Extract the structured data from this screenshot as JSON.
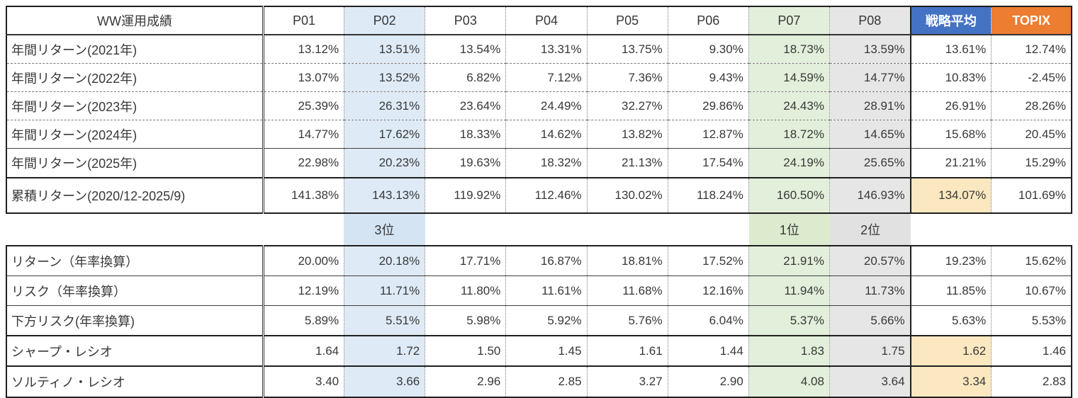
{
  "title": "WW運用成績",
  "columns": [
    "P01",
    "P02",
    "P03",
    "P04",
    "P05",
    "P06",
    "P07",
    "P08",
    "戦略平均",
    "TOPIX"
  ],
  "upper": [
    {
      "label": "年間リターン(2021年)",
      "values": [
        "13.12%",
        "13.51%",
        "13.54%",
        "13.31%",
        "13.75%",
        "9.30%",
        "18.73%",
        "13.59%",
        "13.61%",
        "12.74%"
      ]
    },
    {
      "label": "年間リターン(2022年)",
      "values": [
        "13.07%",
        "13.52%",
        "6.82%",
        "7.12%",
        "7.36%",
        "9.43%",
        "14.59%",
        "14.77%",
        "10.83%",
        "-2.45%"
      ]
    },
    {
      "label": "年間リターン(2023年)",
      "values": [
        "25.39%",
        "26.31%",
        "23.64%",
        "24.49%",
        "32.27%",
        "29.86%",
        "24.43%",
        "28.91%",
        "26.91%",
        "28.26%"
      ]
    },
    {
      "label": "年間リターン(2024年)",
      "values": [
        "14.77%",
        "17.62%",
        "18.33%",
        "14.62%",
        "13.82%",
        "12.87%",
        "18.72%",
        "14.65%",
        "15.68%",
        "20.45%"
      ]
    },
    {
      "label": "年間リターン(2025年)",
      "values": [
        "22.98%",
        "20.23%",
        "19.63%",
        "18.32%",
        "21.13%",
        "17.54%",
        "24.19%",
        "25.65%",
        "21.21%",
        "15.29%"
      ]
    },
    {
      "label": "累積リターン(2020/12-2025/9)",
      "values": [
        "141.38%",
        "143.13%",
        "119.92%",
        "112.46%",
        "130.02%",
        "118.24%",
        "160.50%",
        "146.93%",
        "134.07%",
        "101.69%"
      ]
    }
  ],
  "ranks": {
    "p02": "3位",
    "p07": "1位",
    "p08": "2位"
  },
  "lower": [
    {
      "label": "リターン（年率換算）",
      "values": [
        "20.00%",
        "20.18%",
        "17.71%",
        "16.87%",
        "18.81%",
        "17.52%",
        "21.91%",
        "20.57%",
        "19.23%",
        "15.62%"
      ]
    },
    {
      "label": "リスク（年率換算）",
      "values": [
        "12.19%",
        "11.71%",
        "11.80%",
        "11.61%",
        "11.68%",
        "12.16%",
        "11.94%",
        "11.73%",
        "11.85%",
        "10.67%"
      ]
    },
    {
      "label": "下方リスク(年率換算)",
      "values": [
        "5.89%",
        "5.51%",
        "5.98%",
        "5.92%",
        "5.76%",
        "6.04%",
        "5.37%",
        "5.66%",
        "5.63%",
        "5.53%"
      ]
    },
    {
      "label": "シャープ・レシオ",
      "values": [
        "1.64",
        "1.72",
        "1.50",
        "1.45",
        "1.61",
        "1.44",
        "1.83",
        "1.75",
        "1.62",
        "1.46"
      ]
    },
    {
      "label": "ソルティノ・レシオ",
      "values": [
        "3.40",
        "3.66",
        "2.96",
        "2.85",
        "3.27",
        "2.90",
        "4.08",
        "3.64",
        "3.34",
        "2.83"
      ]
    }
  ],
  "colors": {
    "p02_column_tint": "#DEEAF6",
    "p07_column_tint": "#E2EFDA",
    "p08_column_tint": "#E7E6E6",
    "strategy_header_blue": "#4472C4",
    "topix_header_orange": "#ED7D31",
    "strategy_highlight_yellow": "#FBE8C0"
  }
}
